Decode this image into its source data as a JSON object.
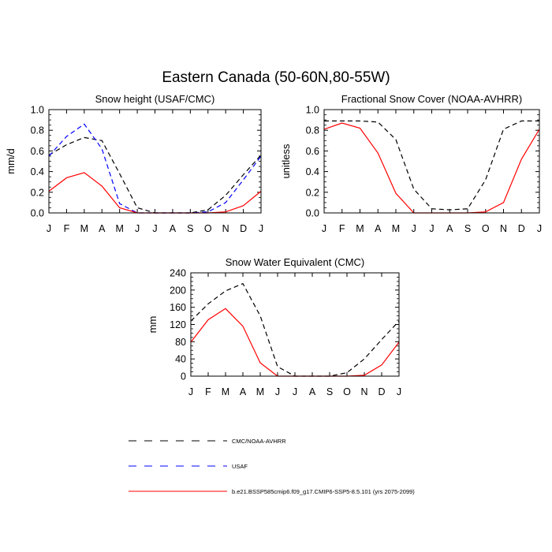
{
  "figure": {
    "title": "Eastern Canada (50-60N,80-55W)"
  },
  "months": [
    "J",
    "F",
    "M",
    "A",
    "M",
    "J",
    "J",
    "A",
    "S",
    "O",
    "N",
    "D",
    "J"
  ],
  "colors": {
    "obs": "#000000",
    "usaf": "#0000ff",
    "model": "#ff0000"
  },
  "chart_data": [
    {
      "type": "line",
      "title": "Snow height (USAF/CMC)",
      "ylabel": "mm/d",
      "xlabel": "",
      "ylim": [
        0,
        1.0
      ],
      "yticks": [
        "0.0",
        "0.2",
        "0.4",
        "0.6",
        "0.8",
        "1.0"
      ],
      "series": [
        {
          "name": "CMC/NOAA-AVHRR",
          "style": "dashed",
          "color_key": "obs",
          "values": [
            0.56,
            0.66,
            0.73,
            0.7,
            0.38,
            0.05,
            0.0,
            0.0,
            0.0,
            0.03,
            0.17,
            0.37,
            0.56
          ]
        },
        {
          "name": "USAF",
          "style": "dashed",
          "color_key": "usaf",
          "values": [
            0.55,
            0.74,
            0.86,
            0.62,
            0.09,
            0.0,
            0.0,
            0.0,
            0.0,
            0.01,
            0.1,
            0.32,
            0.55
          ]
        },
        {
          "name": "b.e21.BSSP585cmip6.f09_g17.CMIP6-SSP5-8.5.101 (yrs 2075-2099)",
          "style": "solid",
          "color_key": "model",
          "values": [
            0.21,
            0.34,
            0.39,
            0.26,
            0.05,
            0.0,
            0.0,
            0.0,
            0.0,
            0.0,
            0.01,
            0.07,
            0.21
          ]
        }
      ]
    },
    {
      "type": "line",
      "title": "Fractional Snow Cover (NOAA-AVHRR)",
      "ylabel": "unitless",
      "xlabel": "",
      "ylim": [
        0,
        1.0
      ],
      "yticks": [
        "0.0",
        "0.2",
        "0.4",
        "0.6",
        "0.8",
        "1.0"
      ],
      "series": [
        {
          "name": "CMC/NOAA-AVHRR",
          "style": "dashed",
          "color_key": "obs",
          "values": [
            0.89,
            0.89,
            0.89,
            0.88,
            0.71,
            0.23,
            0.04,
            0.03,
            0.04,
            0.32,
            0.81,
            0.89,
            0.89
          ]
        },
        {
          "name": "b.e21.BSSP585cmip6.f09_g17.CMIP6-SSP5-8.5.101 (yrs 2075-2099)",
          "style": "solid",
          "color_key": "model",
          "values": [
            0.81,
            0.87,
            0.82,
            0.58,
            0.19,
            0.0,
            0.0,
            0.0,
            0.0,
            0.01,
            0.1,
            0.52,
            0.81
          ]
        }
      ]
    },
    {
      "type": "line",
      "title": "Snow Water Equivalent (CMC)",
      "ylabel": "mm",
      "xlabel": "",
      "ylim": [
        0,
        240
      ],
      "yticks": [
        "0",
        "40",
        "80",
        "120",
        "160",
        "200",
        "240"
      ],
      "series": [
        {
          "name": "CMC/NOAA-AVHRR",
          "style": "dashed",
          "color_key": "obs",
          "values": [
            128,
            168,
            198,
            215,
            140,
            22,
            0,
            0,
            0,
            8,
            40,
            85,
            128
          ]
        },
        {
          "name": "b.e21.BSSP585cmip6.f09_g17.CMIP6-SSP5-8.5.101 (yrs 2075-2099)",
          "style": "solid",
          "color_key": "model",
          "values": [
            79,
            131,
            157,
            116,
            31,
            0,
            0,
            0,
            0,
            0,
            2,
            26,
            79
          ]
        }
      ]
    }
  ],
  "legend": [
    {
      "label": "CMC/NOAA-AVHRR",
      "style": "dashed",
      "color_key": "obs"
    },
    {
      "label": "USAF",
      "style": "dashed",
      "color_key": "usaf"
    },
    {
      "label": "b.e21.BSSP585cmip6.f09_g17.CMIP6-SSP5-8.5.101 (yrs 2075-2099)",
      "style": "solid",
      "color_key": "model"
    }
  ]
}
